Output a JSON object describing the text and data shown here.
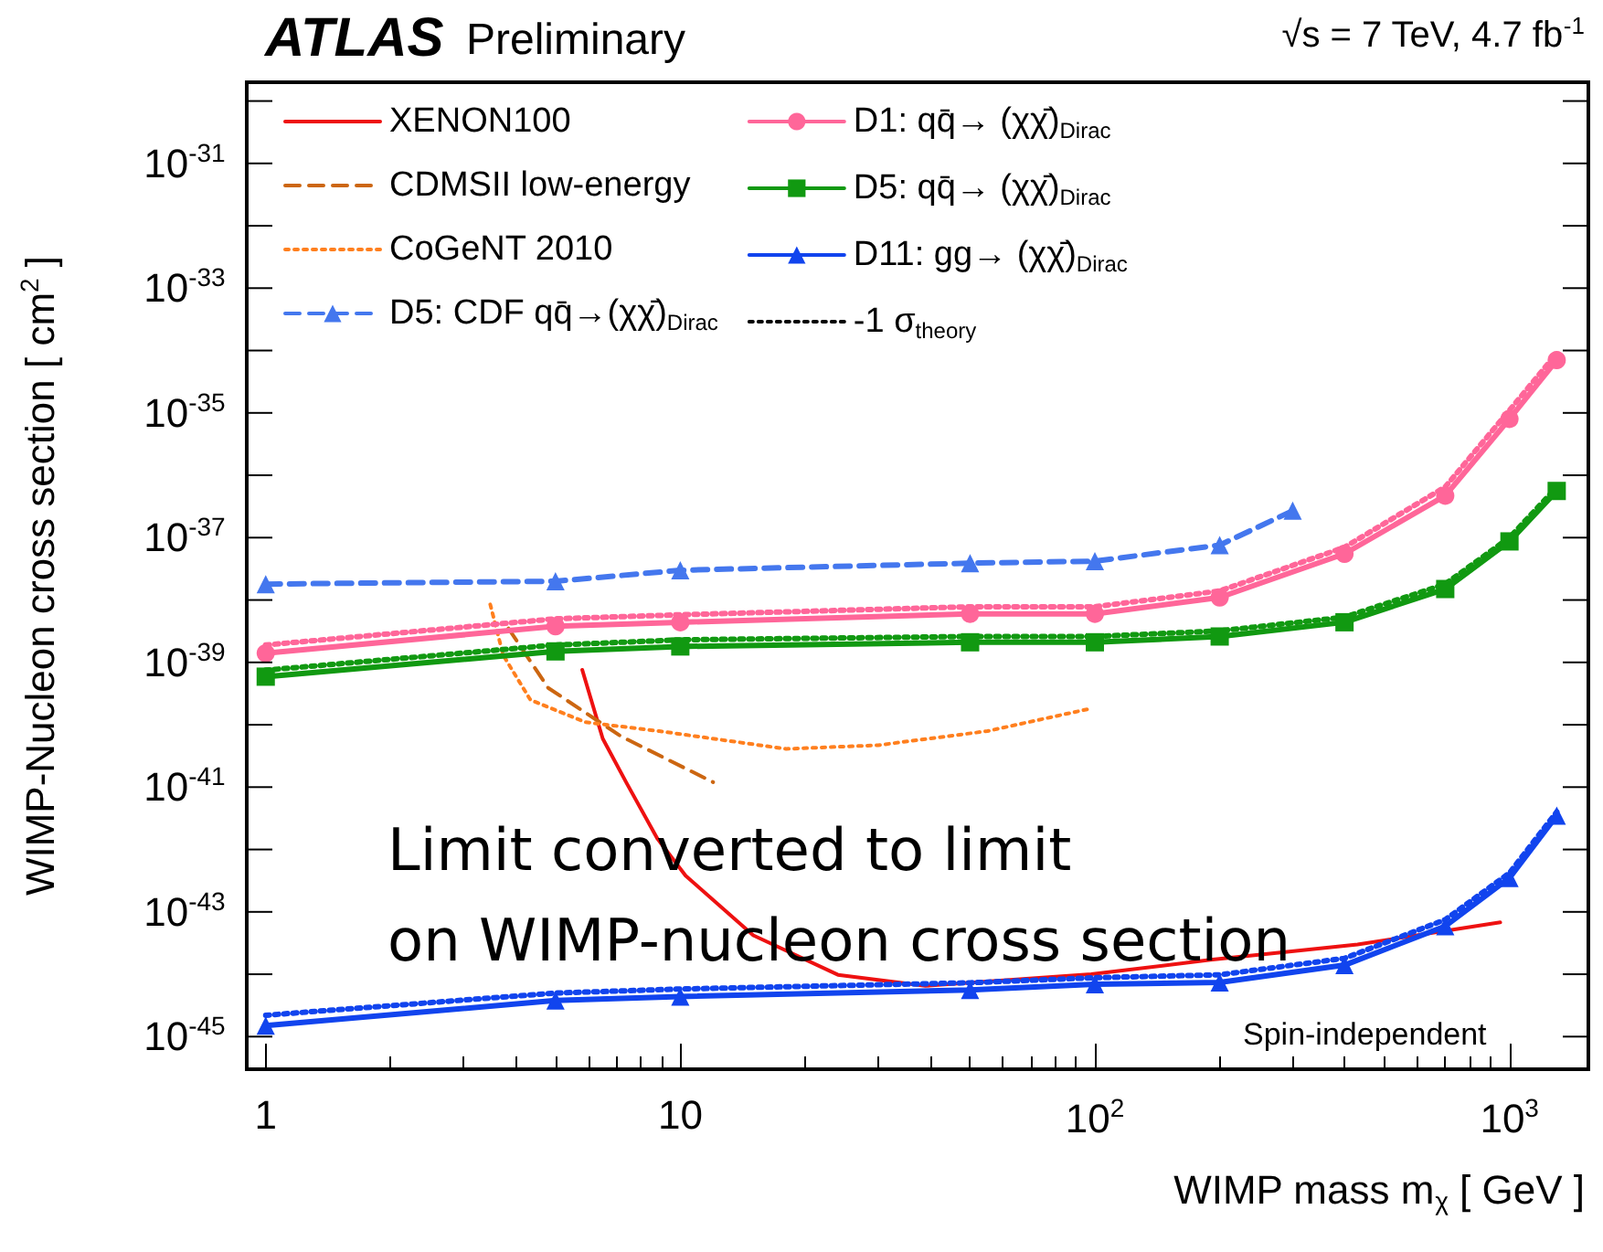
{
  "chart_data": {
    "type": "line",
    "title": "ATLAS",
    "subtitle": "Preliminary",
    "xlabel": "WIMP mass m$_{χ}$ [ GeV ]",
    "ylabel": "WIMP-Nucleon cross section [ cm$^{2}$ ]",
    "annotations": [
      "√s = 7 TeV, 4.7 fb$^{-1}$",
      "Limit converted to limit\non WIMP-nucleon cross section",
      "Spin-independent"
    ],
    "log": "xy",
    "xlim": [
      0.9,
      1550
    ],
    "ylim": [
      3e-46,
      2e-30
    ],
    "xticks": [
      1,
      10,
      {
        "value": 100,
        "label": "10$^{2}$"
      },
      {
        "value": 1000,
        "label": "10$^{3}$"
      }
    ],
    "yticks": [
      {
        "value": 1e-30,
        "label": null
      },
      {
        "value": 1e-31,
        "label": "10$^{-31}$"
      },
      {
        "value": 1e-32,
        "label": null
      },
      {
        "value": 1e-33,
        "label": "10$^{-33}$"
      },
      {
        "value": 1e-34,
        "label": null
      },
      {
        "value": 1e-35,
        "label": "10$^{-35}$"
      },
      {
        "value": 1e-36,
        "label": null
      },
      {
        "value": 1e-37,
        "label": "10$^{-37}$"
      },
      {
        "value": 1e-38,
        "label": null
      },
      {
        "value": 1e-39,
        "label": "10$^{-39}$"
      },
      {
        "value": 1e-40,
        "label": null
      },
      {
        "value": 1e-41,
        "label": "10$^{-41}$"
      },
      {
        "value": 1e-42,
        "label": null
      },
      {
        "value": 1e-43,
        "label": "10$^{-43}$"
      },
      {
        "value": 1e-44,
        "label": null
      },
      {
        "value": 1e-45,
        "label": "10$^{-45}$"
      }
    ],
    "grid": false,
    "legend": "top left",
    "series": [
      {
        "name": "XENON100",
        "color": "#ee1111",
        "line_style": "solid",
        "marker": "none",
        "x": [
          5.8,
          6.5,
          7.4,
          8.8,
          10.3,
          15,
          24,
          39,
          98,
          190,
          430,
          950
        ],
        "values": [
          7.6e-40,
          6e-41,
          1.2e-41,
          1.5e-42,
          3.8e-43,
          4.2e-44,
          9.8e-45,
          6.5e-45,
          1e-44,
          1.7e-44,
          3e-44,
          6.8e-44
        ]
      },
      {
        "name": "CDMSII low-energy",
        "color": "#cc6611",
        "line_style": "dashed",
        "marker": "none",
        "x": [
          3.85,
          4.8,
          7.2,
          12
        ],
        "values": [
          3.5e-39,
          3.9e-40,
          6.5e-41,
          1.2e-41
        ]
      },
      {
        "name": "CoGeNT 2010",
        "color": "#ff7f1e",
        "line_style": "dotted",
        "marker": "none",
        "x": [
          3.48,
          3.74,
          4.35,
          5.9,
          8.9,
          18,
          30,
          55,
          97
        ],
        "values": [
          8.5e-39,
          1.3e-39,
          2.5e-40,
          1.1e-40,
          7.9e-41,
          4.1e-41,
          4.7e-41,
          7.9e-41,
          1.8e-40
        ]
      },
      {
        "name": "D5: CDF qq̄→(χχ̄)$_{Dirac}$",
        "color": "#4477ee",
        "line_style": "dashed",
        "marker": "triangle",
        "x": [
          1,
          5,
          10,
          50,
          100,
          200,
          300
        ],
        "values": [
          1.8e-38,
          2e-38,
          3e-38,
          3.9e-38,
          4.2e-38,
          7.6e-38,
          2.7e-37
        ]
      },
      {
        "name": "D1: qq̄→ (χχ̄)$_{Dirac}$",
        "color": "#ff6699",
        "line_style": "solid",
        "marker": "circle",
        "x": [
          1,
          5,
          10,
          50,
          100,
          200,
          400,
          700,
          1000,
          1300
        ],
        "values": [
          1.4e-39,
          3.8e-39,
          4.4e-39,
          6e-39,
          6e-39,
          1.1e-38,
          5.5e-38,
          4.7e-37,
          8e-36,
          7e-35
        ]
      },
      {
        "name": "D5: qq̄→ (χχ̄)$_{Dirac}$",
        "color": "#119911",
        "line_style": "solid",
        "marker": "square",
        "x": [
          1,
          5,
          10,
          50,
          100,
          200,
          400,
          700,
          1000,
          1300
        ],
        "values": [
          5.9e-40,
          1.5e-39,
          1.8e-39,
          2.1e-39,
          2.1e-39,
          2.6e-39,
          4.4e-39,
          1.5e-38,
          8.7e-38,
          5.6e-37
        ]
      },
      {
        "name": "D11: gg→ (χχ̄)$_{Dirac}$",
        "color": "#1144ee",
        "line_style": "solid",
        "marker": "triangle",
        "x": [
          1,
          5,
          10,
          50,
          100,
          200,
          400,
          700,
          1000,
          1300
        ],
        "values": [
          1.5e-45,
          3.8e-45,
          4.4e-45,
          5.6e-45,
          6.9e-45,
          7.4e-45,
          1.4e-44,
          5.9e-44,
          3.5e-43,
          3.5e-42
        ]
      },
      {
        "name": "-1 σ$_{theory}$",
        "color": "#000000",
        "line_style": "dotted",
        "marker": "none"
      },
      {
        "color": "#ff6699",
        "line_style": "dotted",
        "marker": "none",
        "x": [
          1,
          5,
          10,
          50,
          100,
          200,
          400,
          700,
          1000,
          1300
        ],
        "values": [
          1.9e-39,
          5e-39,
          5.8e-39,
          7.8e-39,
          7.8e-39,
          1.4e-38,
          7e-38,
          6.5e-37,
          1.1e-35,
          9e-35
        ]
      },
      {
        "color": "#119911",
        "line_style": "dotted",
        "marker": "none",
        "x": [
          1,
          5,
          10,
          50,
          100,
          200,
          400,
          700,
          1000,
          1300
        ],
        "values": [
          7.5e-40,
          1.9e-39,
          2.3e-39,
          2.6e-39,
          2.6e-39,
          3.2e-39,
          5.3e-39,
          1.8e-38,
          1e-37,
          6.4e-37
        ]
      },
      {
        "color": "#1144ee",
        "line_style": "dotted",
        "marker": "none",
        "x": [
          1,
          5,
          10,
          50,
          100,
          200,
          400,
          700,
          1000,
          1300
        ],
        "values": [
          2.2e-45,
          5e-45,
          5.8e-45,
          7.3e-45,
          8.8e-45,
          9.8e-45,
          1.8e-44,
          7.5e-44,
          4.2e-43,
          4e-42
        ]
      }
    ]
  }
}
